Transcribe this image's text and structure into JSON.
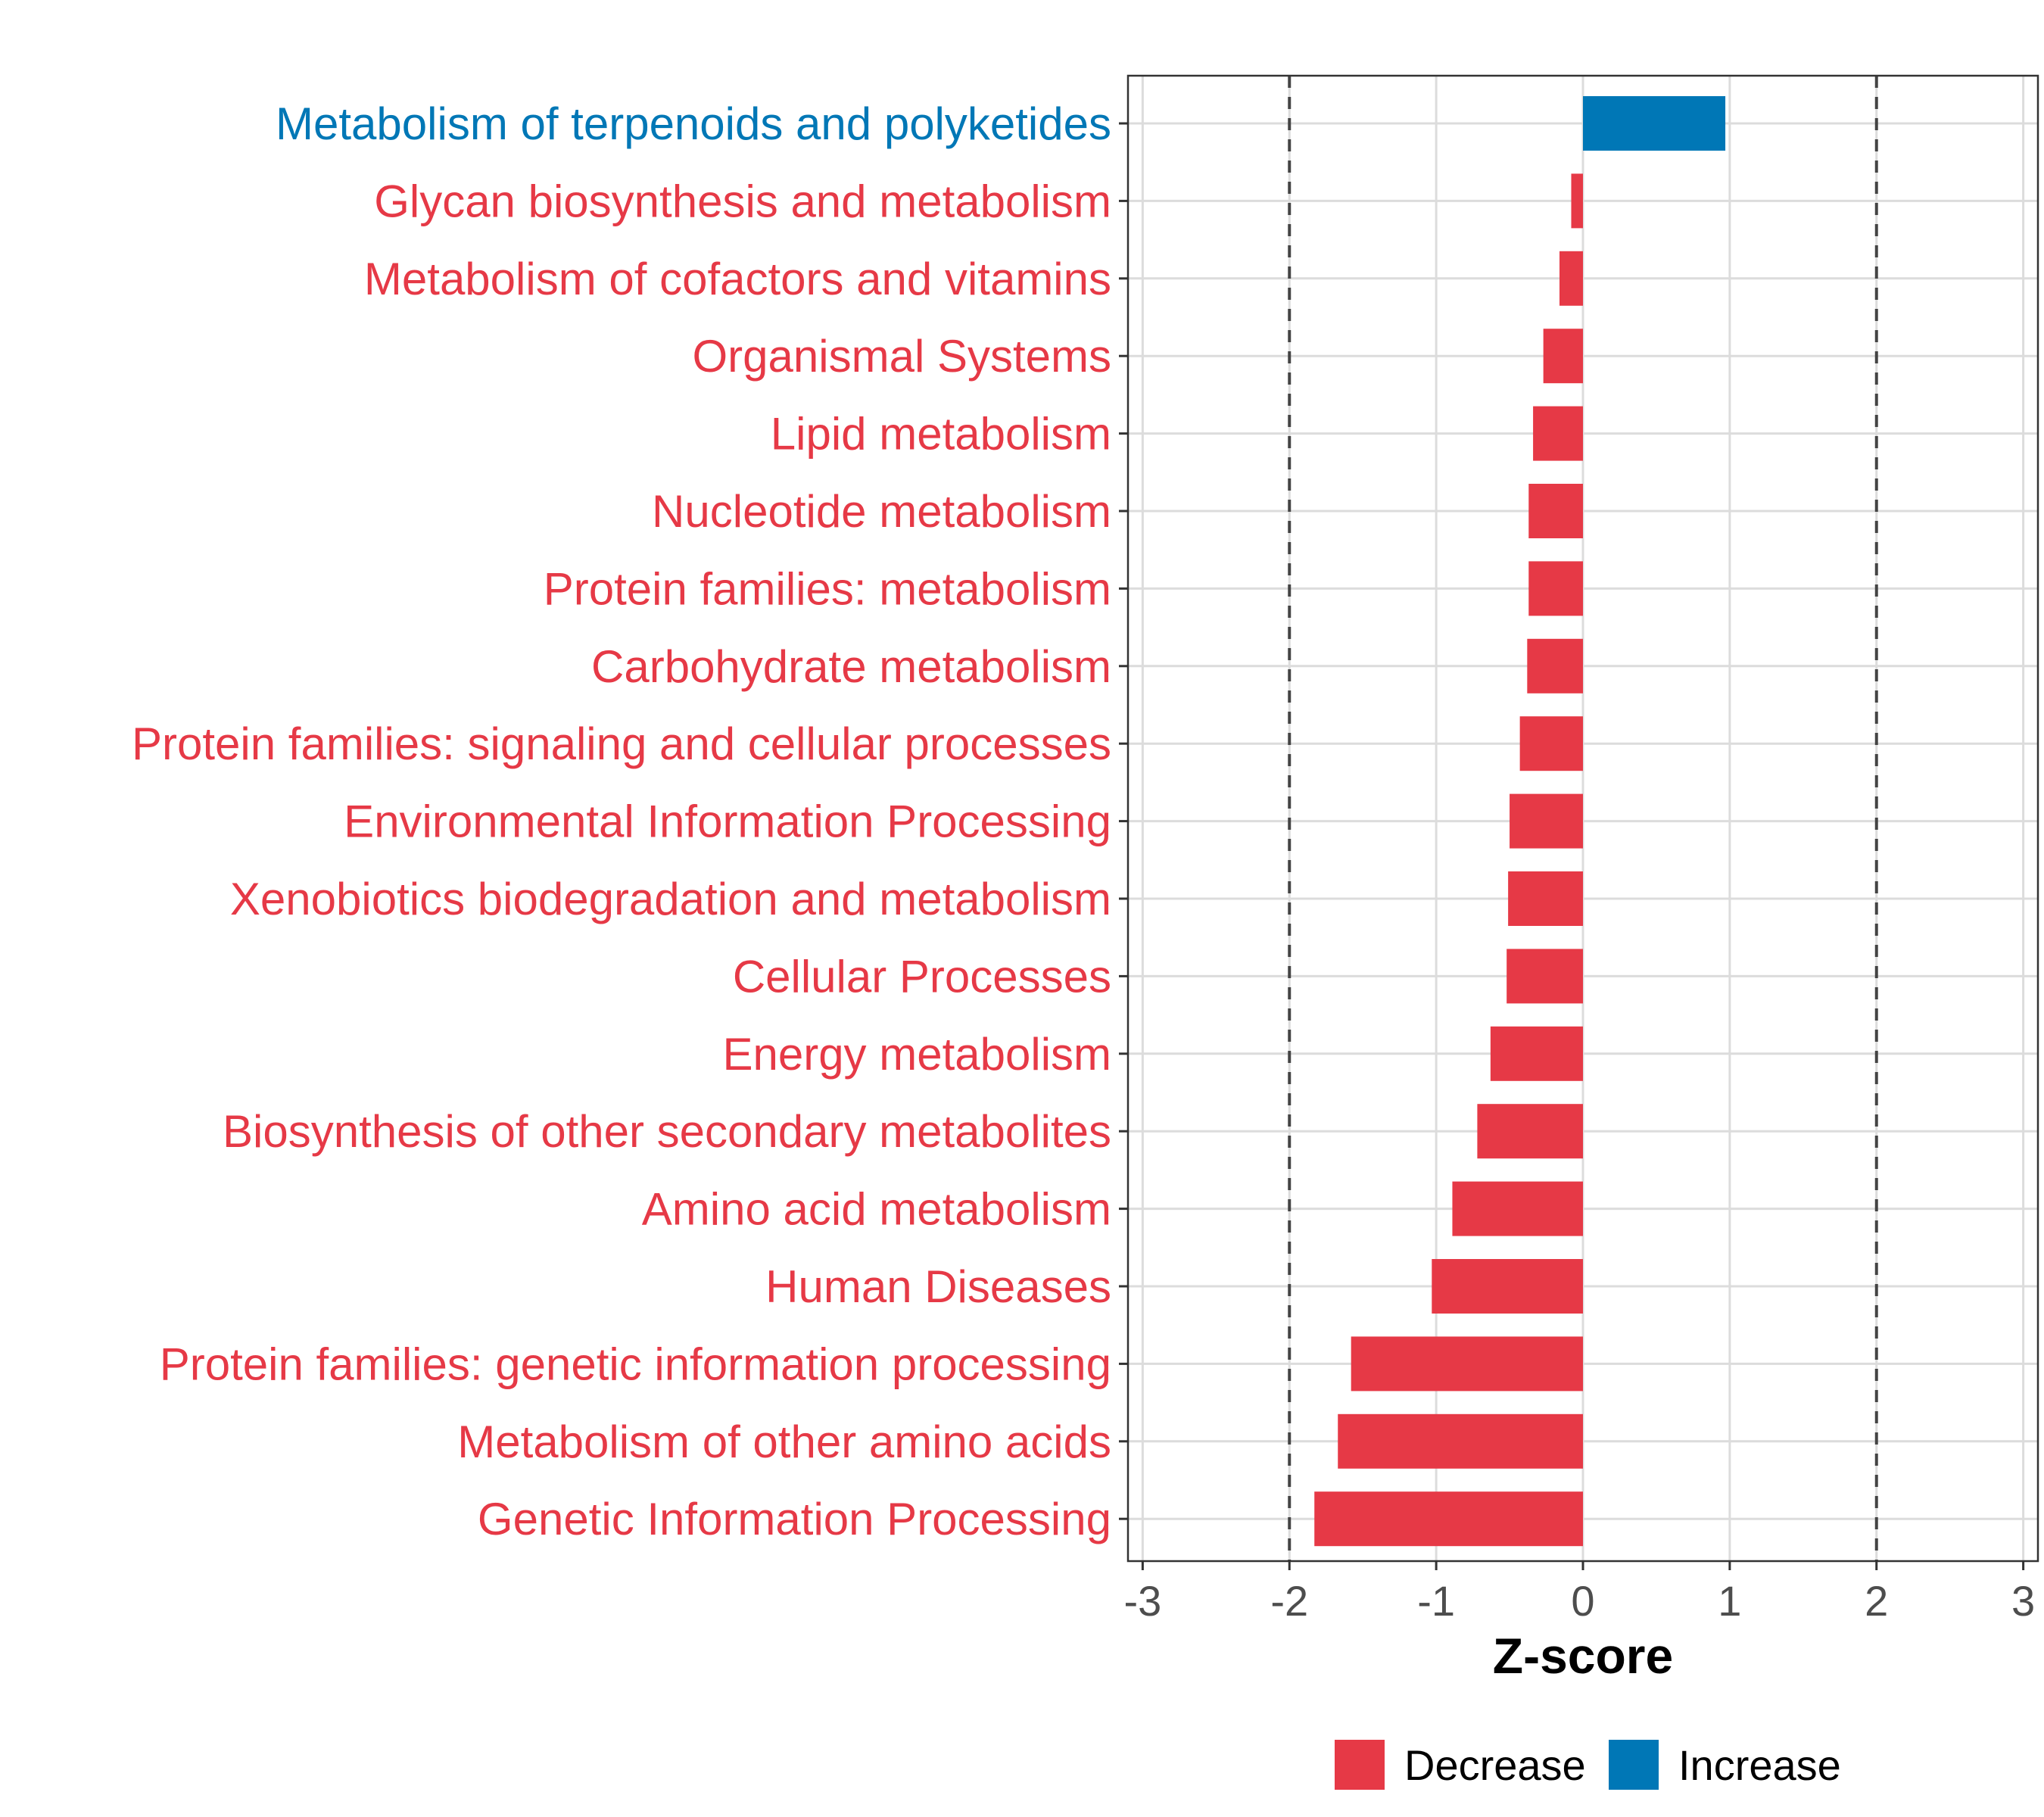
{
  "colors": {
    "decrease": "#E63946",
    "increase": "#0077B6"
  },
  "chart_data": {
    "type": "bar",
    "orientation": "horizontal",
    "xlabel": "Z-score",
    "xlim": [
      -3.1,
      3.1
    ],
    "xticks": [
      -3,
      -2,
      -1,
      0,
      1,
      2,
      3
    ],
    "xtick_labels": [
      "-3",
      "-2",
      "-1",
      "0",
      "1",
      "2",
      "3"
    ],
    "reference_lines": [
      -2,
      2
    ],
    "grid": true,
    "legend": {
      "position": "bottom",
      "items": [
        {
          "label": "Decrease",
          "group": "decrease"
        },
        {
          "label": "Increase",
          "group": "increase"
        }
      ]
    },
    "bars": [
      {
        "category": "Metabolism of terpenoids and polyketides",
        "value": 0.97,
        "group": "increase"
      },
      {
        "category": "Glycan biosynthesis and metabolism",
        "value": -0.08,
        "group": "decrease"
      },
      {
        "category": "Metabolism of cofactors and vitamins",
        "value": -0.16,
        "group": "decrease"
      },
      {
        "category": "Organismal Systems",
        "value": -0.27,
        "group": "decrease"
      },
      {
        "category": "Lipid metabolism",
        "value": -0.34,
        "group": "decrease"
      },
      {
        "category": "Nucleotide metabolism",
        "value": -0.37,
        "group": "decrease"
      },
      {
        "category": "Protein families: metabolism",
        "value": -0.37,
        "group": "decrease"
      },
      {
        "category": "Carbohydrate metabolism",
        "value": -0.38,
        "group": "decrease"
      },
      {
        "category": "Protein families: signaling and cellular processes",
        "value": -0.43,
        "group": "decrease"
      },
      {
        "category": "Environmental Information Processing",
        "value": -0.5,
        "group": "decrease"
      },
      {
        "category": "Xenobiotics biodegradation and metabolism",
        "value": -0.51,
        "group": "decrease"
      },
      {
        "category": "Cellular Processes",
        "value": -0.52,
        "group": "decrease"
      },
      {
        "category": "Energy metabolism",
        "value": -0.63,
        "group": "decrease"
      },
      {
        "category": "Biosynthesis of other secondary metabolites",
        "value": -0.72,
        "group": "decrease"
      },
      {
        "category": "Amino acid metabolism",
        "value": -0.89,
        "group": "decrease"
      },
      {
        "category": "Human Diseases",
        "value": -1.03,
        "group": "decrease"
      },
      {
        "category": "Protein families: genetic information processing",
        "value": -1.58,
        "group": "decrease"
      },
      {
        "category": "Metabolism of other amino acids",
        "value": -1.67,
        "group": "decrease"
      },
      {
        "category": "Genetic Information Processing",
        "value": -1.83,
        "group": "decrease"
      }
    ]
  }
}
